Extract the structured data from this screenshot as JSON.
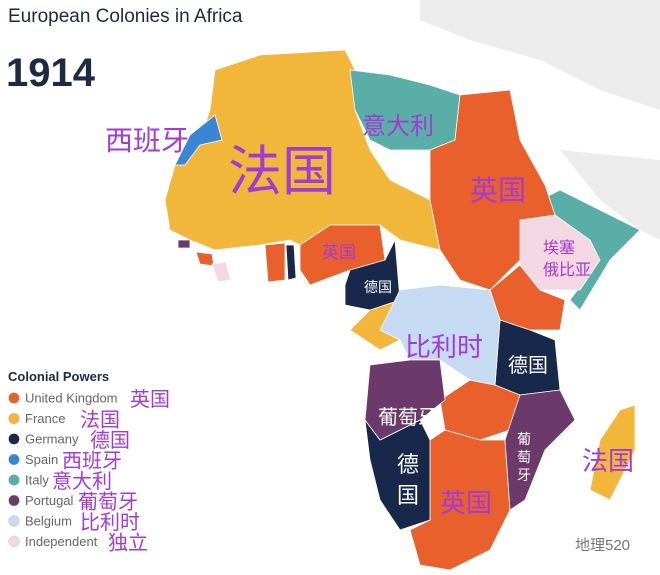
{
  "header": {
    "title": "European Colonies in Africa",
    "year": "1914"
  },
  "legend": {
    "title": "Colonial Powers",
    "items": [
      {
        "name": "United Kingdom",
        "color": "#e9602c",
        "note": "英国"
      },
      {
        "name": "France",
        "color": "#f2b63a",
        "note": "法国"
      },
      {
        "name": "Germany",
        "color": "#17284a",
        "note": "德国"
      },
      {
        "name": "Spain",
        "color": "#3a86d4",
        "note": "西班牙"
      },
      {
        "name": "Italy",
        "color": "#5aaea8",
        "note": "意大利"
      },
      {
        "name": "Portugal",
        "color": "#6b3a6b",
        "note": "葡萄牙"
      },
      {
        "name": "Belgium",
        "color": "#c6daf2",
        "note": "比利时"
      },
      {
        "name": "Independent",
        "color": "#f3d7e3",
        "note": "独立"
      }
    ]
  },
  "map_labels": [
    {
      "lines": [
        "西班牙"
      ]
    },
    {
      "lines": [
        "法国"
      ]
    },
    {
      "lines": [
        "意大利"
      ]
    },
    {
      "lines": [
        "英国"
      ]
    },
    {
      "lines": [
        "英国"
      ]
    },
    {
      "lines": [
        "德国"
      ]
    },
    {
      "lines": [
        "埃塞",
        "俄比亚"
      ]
    },
    {
      "lines": [
        "比利时"
      ]
    },
    {
      "lines": [
        "德国"
      ]
    },
    {
      "lines": [
        "葡萄牙"
      ]
    },
    {
      "lines": [
        "葡",
        "萄",
        "牙"
      ]
    },
    {
      "lines": [
        "德",
        "国"
      ]
    },
    {
      "lines": [
        "英国"
      ]
    },
    {
      "lines": [
        "法国"
      ]
    }
  ],
  "watermark": "地理520"
}
